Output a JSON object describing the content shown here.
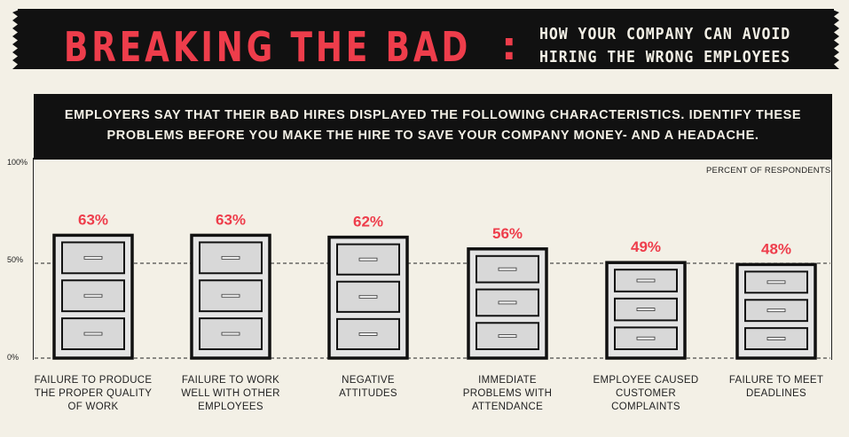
{
  "header": {
    "title": "BREAKING THE BAD",
    "colon": ":",
    "subtitle_line1": "HOW YOUR COMPANY CAN AVOID",
    "subtitle_line2": "HIRING THE WRONG EMPLOYEES"
  },
  "intro": {
    "line1": "EMPLOYERS SAY THAT THEIR BAD HIRES DISPLAYED THE FOLLOWING CHARACTERISTICS. IDENTIFY THESE",
    "line2": "PROBLEMS BEFORE YOU MAKE THE HIRE TO SAVE YOUR COMPANY MONEY- AND A HEADACHE."
  },
  "colors": {
    "accent": "#ee3d4b",
    "ink": "#111111",
    "background": "#f3f0e6",
    "cabinet_fill": "#e4e4e4",
    "drawer_fill": "#d8d8d8"
  },
  "chart_data": {
    "type": "bar",
    "bar_style": "filing-cabinet",
    "unit_label": "PERCENT OF RESPONDENTS",
    "categories": [
      [
        "FAILURE TO PRODUCE",
        "THE PROPER QUALITY",
        "OF WORK"
      ],
      [
        "FAILURE TO WORK",
        "WELL WITH OTHER",
        "EMPLOYEES"
      ],
      [
        "NEGATIVE",
        "ATTITUDES"
      ],
      [
        "IMMEDIATE",
        "PROBLEMS WITH",
        "ATTENDANCE"
      ],
      [
        "EMPLOYEE CAUSED",
        "CUSTOMER",
        "COMPLAINTS"
      ],
      [
        "FAILURE TO MEET",
        "DEADLINES"
      ]
    ],
    "values": [
      63,
      63,
      62,
      56,
      49,
      48
    ],
    "value_labels": [
      "63%",
      "63%",
      "62%",
      "56%",
      "49%",
      "48%"
    ],
    "ylim": [
      0,
      100
    ],
    "yticks": [
      {
        "value": 100,
        "label": "100%"
      },
      {
        "value": 50,
        "label": "50%"
      },
      {
        "value": 0,
        "label": "0%"
      }
    ],
    "reference_line": 50
  }
}
